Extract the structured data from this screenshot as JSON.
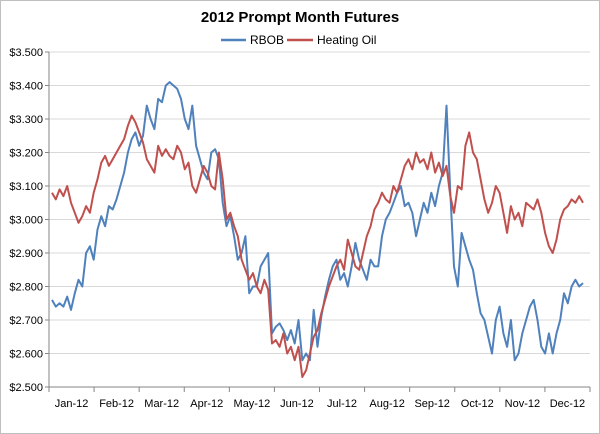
{
  "chart_data": {
    "type": "line",
    "title": "2012 Prompt Month Futures",
    "xlabel": "",
    "ylabel": "",
    "ylim": [
      2.5,
      3.5
    ],
    "y_ticks": [
      "$2.500",
      "$2.600",
      "$2.700",
      "$2.800",
      "$2.900",
      "$3.000",
      "$3.100",
      "$3.200",
      "$3.300",
      "$3.400",
      "$3.500"
    ],
    "x_ticks": [
      "Jan-12",
      "Feb-12",
      "Mar-12",
      "Apr-12",
      "May-12",
      "Jun-12",
      "Jul-12",
      "Aug-12",
      "Sep-12",
      "Oct-12",
      "Nov-12",
      "Dec-12"
    ],
    "grid": true,
    "legend_position": "top",
    "series": [
      {
        "name": "RBOB",
        "color": "#4f81bd",
        "values": [
          2.76,
          2.74,
          2.75,
          2.74,
          2.77,
          2.73,
          2.78,
          2.82,
          2.8,
          2.9,
          2.92,
          2.88,
          2.97,
          3.01,
          2.98,
          3.04,
          3.03,
          3.06,
          3.1,
          3.14,
          3.2,
          3.24,
          3.26,
          3.22,
          3.25,
          3.34,
          3.3,
          3.27,
          3.36,
          3.35,
          3.4,
          3.41,
          3.4,
          3.39,
          3.36,
          3.3,
          3.27,
          3.34,
          3.22,
          3.18,
          3.14,
          3.12,
          3.2,
          3.21,
          3.18,
          3.05,
          2.98,
          3.01,
          2.95,
          2.88,
          2.9,
          2.95,
          2.78,
          2.8,
          2.8,
          2.86,
          2.88,
          2.9,
          2.66,
          2.68,
          2.69,
          2.67,
          2.64,
          2.67,
          2.63,
          2.7,
          2.58,
          2.6,
          2.58,
          2.73,
          2.62,
          2.71,
          2.77,
          2.82,
          2.86,
          2.88,
          2.82,
          2.84,
          2.8,
          2.86,
          2.93,
          2.88,
          2.85,
          2.82,
          2.88,
          2.86,
          2.86,
          2.95,
          3.0,
          3.02,
          3.05,
          3.08,
          3.1,
          3.04,
          3.05,
          3.02,
          2.95,
          3.0,
          3.05,
          3.02,
          3.08,
          3.04,
          3.1,
          3.14,
          3.34,
          3.08,
          2.86,
          2.8,
          2.96,
          2.92,
          2.88,
          2.85,
          2.78,
          2.72,
          2.7,
          2.65,
          2.6,
          2.7,
          2.74,
          2.66,
          2.62,
          2.7,
          2.58,
          2.6,
          2.66,
          2.7,
          2.74,
          2.76,
          2.7,
          2.62,
          2.6,
          2.66,
          2.6,
          2.66,
          2.7,
          2.78,
          2.75,
          2.8,
          2.82,
          2.8,
          2.81
        ]
      },
      {
        "name": "Heating Oil",
        "color": "#c0504d",
        "values": [
          3.08,
          3.06,
          3.09,
          3.07,
          3.1,
          3.05,
          3.02,
          2.99,
          3.01,
          3.04,
          3.02,
          3.08,
          3.12,
          3.17,
          3.19,
          3.16,
          3.18,
          3.2,
          3.22,
          3.24,
          3.28,
          3.31,
          3.29,
          3.26,
          3.23,
          3.18,
          3.16,
          3.14,
          3.22,
          3.19,
          3.21,
          3.19,
          3.18,
          3.22,
          3.2,
          3.15,
          3.17,
          3.1,
          3.08,
          3.12,
          3.16,
          3.14,
          3.1,
          3.09,
          3.2,
          3.12,
          3.0,
          3.02,
          2.98,
          2.95,
          2.88,
          2.85,
          2.82,
          2.84,
          2.8,
          2.78,
          2.82,
          2.79,
          2.63,
          2.64,
          2.62,
          2.66,
          2.6,
          2.62,
          2.58,
          2.62,
          2.53,
          2.55,
          2.6,
          2.65,
          2.67,
          2.72,
          2.76,
          2.8,
          2.83,
          2.86,
          2.88,
          2.85,
          2.94,
          2.9,
          2.86,
          2.85,
          2.9,
          2.95,
          2.98,
          3.03,
          3.05,
          3.08,
          3.06,
          3.05,
          3.1,
          3.08,
          3.12,
          3.16,
          3.18,
          3.15,
          3.2,
          3.17,
          3.18,
          3.15,
          3.2,
          3.14,
          3.17,
          3.13,
          3.16,
          3.07,
          3.02,
          3.1,
          3.09,
          3.22,
          3.26,
          3.2,
          3.18,
          3.12,
          3.06,
          3.02,
          3.05,
          3.1,
          3.08,
          3.02,
          2.96,
          3.04,
          3.0,
          3.02,
          2.98,
          3.05,
          3.04,
          3.03,
          3.06,
          3.02,
          2.96,
          2.92,
          2.9,
          2.94,
          3.0,
          3.03,
          3.04,
          3.06,
          3.05,
          3.07,
          3.05
        ]
      }
    ]
  }
}
